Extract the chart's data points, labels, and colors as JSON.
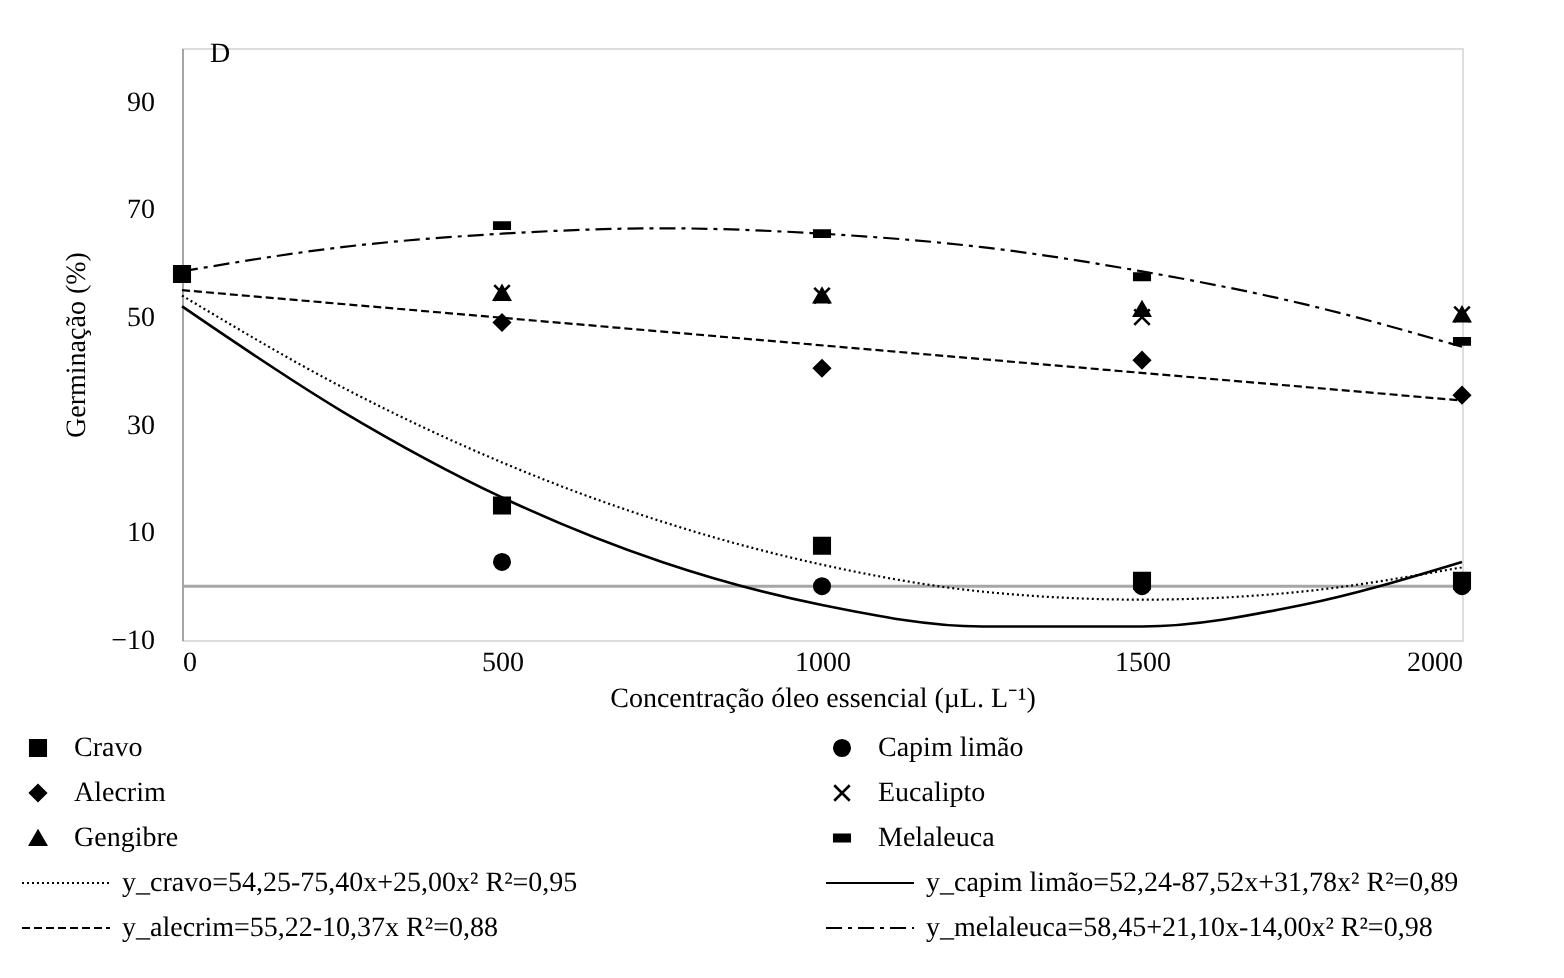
{
  "chart_data": {
    "type": "scatter",
    "xlabel": "Concentração óleo essencial (µL. L⁻¹)",
    "ylabel": "Germinação (%)",
    "annotations": [
      "D"
    ],
    "xlim": [
      0,
      2000
    ],
    "xticks": [
      0,
      500,
      1000,
      1500,
      2000
    ],
    "ylim": [
      -10,
      100
    ],
    "yticks": [
      -10,
      10,
      30,
      50,
      70,
      90
    ],
    "grid": false,
    "legend": "bottom",
    "ref_lines": [
      {
        "axis": "y",
        "value": 0,
        "color": "#a6a6a6"
      }
    ],
    "series": [
      {
        "name": "Cravo",
        "marker": "square",
        "color": "#000000",
        "x": [
          0,
          500,
          1000,
          1500,
          2000
        ],
        "values": [
          58,
          15,
          7.5,
          1,
          1
        ]
      },
      {
        "name": "Capim limão",
        "marker": "circle",
        "color": "#000000",
        "x": [
          500,
          1000,
          1500,
          2000
        ],
        "values": [
          4.5,
          0,
          0,
          0
        ]
      },
      {
        "name": "Alecrim",
        "marker": "diamond",
        "color": "#000000",
        "x": [
          500,
          1000,
          1500,
          2000
        ],
        "values": [
          49,
          40.5,
          42,
          35.5
        ]
      },
      {
        "name": "Eucalipto",
        "marker": "cross",
        "color": "#000000",
        "x": [
          500,
          1000,
          1500,
          2000
        ],
        "values": [
          54.5,
          54,
          50,
          50.5
        ]
      },
      {
        "name": "Gengibre",
        "marker": "triangle",
        "color": "#000000",
        "x": [
          500,
          1000,
          1500,
          2000
        ],
        "values": [
          54.5,
          54,
          51.5,
          50.5
        ]
      },
      {
        "name": "Melaleuca",
        "color": "#000000",
        "x": [
          500,
          1000,
          1500,
          2000
        ],
        "values": [
          67,
          65.5,
          57.5,
          45.5
        ]
      },
      {
        "name": "y_cravo=54,25-75,40x+25,00x² R²=0,95",
        "type": "line",
        "line_style": "dotted",
        "color": "#000000",
        "x": [
          0,
          250,
          500,
          750,
          1000,
          1250,
          1500,
          1750,
          2000
        ],
        "values": [
          54,
          37,
          23,
          12,
          4,
          -1,
          -2.5,
          -1,
          3.5
        ]
      },
      {
        "name": "y_capim limão=52,24-87,52x+31,78x² R²=0,89",
        "type": "line",
        "line_style": "solid",
        "color": "#000000",
        "x": [
          0,
          250,
          500,
          750,
          1000,
          1250,
          1500,
          1750,
          2000
        ],
        "values": [
          52,
          32.5,
          16.5,
          4.5,
          -3.5,
          -7.5,
          -7.5,
          -3.5,
          4.5
        ]
      },
      {
        "name": "y_alecrim=55,22-10,37x R²=0,88",
        "type": "line",
        "line_style": "dashed",
        "color": "#000000",
        "x": [
          0,
          2000
        ],
        "values": [
          55,
          34.5
        ]
      },
      {
        "name": "y_melaleuca=58,45+21,10x-14,00x² R²=0,98",
        "type": "line",
        "line_style": "dashdot",
        "color": "#000000",
        "x": [
          0,
          250,
          500,
          750,
          1000,
          1250,
          1500,
          1750,
          2000
        ],
        "values": [
          58.5,
          63,
          65.5,
          66.5,
          65.5,
          63,
          58.5,
          52.5,
          44.5
        ]
      }
    ]
  }
}
